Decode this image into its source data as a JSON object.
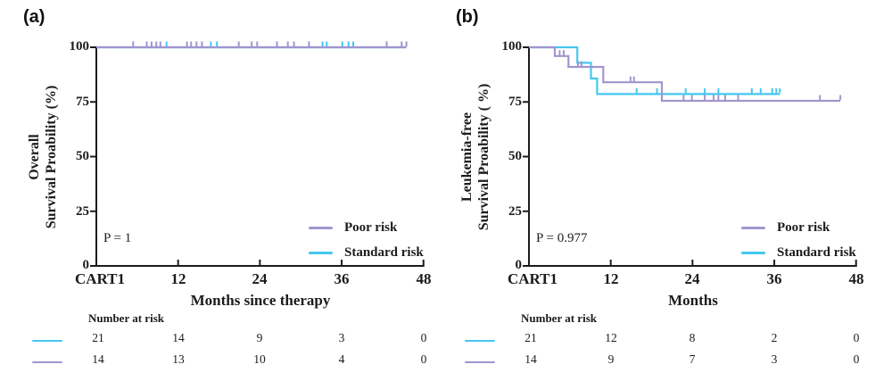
{
  "figure": {
    "background": "#ffffff",
    "colors": {
      "poor": "#A295CE",
      "standard": "#45C7F0",
      "axis": "#1C1C1C",
      "text": "#1C1C1C"
    }
  },
  "chart_data": [
    {
      "type": "km_step",
      "panel_label": "(a)",
      "ylabel_lines": [
        "Overall",
        "Survival Proability (%)"
      ],
      "xlabel": "Months since therapy",
      "p_value": "P = 1",
      "x_axis": {
        "tick_labels": [
          "CART1",
          "12",
          "24",
          "36",
          "48"
        ],
        "tick_months": [
          0,
          12,
          24,
          36,
          48
        ],
        "range_months": [
          0,
          48
        ]
      },
      "y_axis": {
        "tick_labels": [
          "100",
          "75",
          "50",
          "25",
          "0"
        ],
        "tick_values": [
          100,
          75,
          50,
          25,
          0
        ],
        "range": [
          0,
          100
        ]
      },
      "legend": [
        {
          "label": "Poor risk",
          "color_key": "poor"
        },
        {
          "label": "Standard risk",
          "color_key": "standard"
        }
      ],
      "series": [
        {
          "name": "Standard risk",
          "color_key": "standard",
          "points": [
            [
              0,
              100
            ],
            [
              45.5,
              100
            ]
          ],
          "censor_marks": [
            [
              10.3,
              100
            ],
            [
              16.8,
              100
            ],
            [
              17.7,
              100
            ],
            [
              33.2,
              100
            ],
            [
              33.8,
              100
            ],
            [
              36.1,
              100
            ],
            [
              37.0,
              100
            ],
            [
              37.7,
              100
            ]
          ]
        },
        {
          "name": "Poor risk",
          "color_key": "poor",
          "points": [
            [
              0,
              100
            ],
            [
              45.5,
              100
            ]
          ],
          "censor_marks": [
            [
              5.4,
              100
            ],
            [
              7.4,
              100
            ],
            [
              8.1,
              100
            ],
            [
              8.8,
              100
            ],
            [
              9.4,
              100
            ],
            [
              13.3,
              100
            ],
            [
              13.9,
              100
            ],
            [
              14.7,
              100
            ],
            [
              15.5,
              100
            ],
            [
              20.9,
              100
            ],
            [
              22.8,
              100
            ],
            [
              23.6,
              100
            ],
            [
              26.5,
              100
            ],
            [
              28.1,
              100
            ],
            [
              29.0,
              100
            ],
            [
              31.2,
              100
            ],
            [
              42.6,
              100
            ],
            [
              44.8,
              100
            ],
            [
              45.5,
              100
            ]
          ]
        }
      ],
      "number_at_risk": {
        "title": "Number at risk",
        "rows": [
          {
            "color_key": "standard",
            "values": [
              "21",
              "14",
              "9",
              "3",
              "0"
            ]
          },
          {
            "color_key": "poor",
            "values": [
              "14",
              "13",
              "10",
              "4",
              "0"
            ]
          }
        ]
      }
    },
    {
      "type": "km_step",
      "panel_label": "(b)",
      "ylabel_lines": [
        "Leukemia-free",
        "Survival Proability ( %)"
      ],
      "xlabel": "Months",
      "p_value": "P = 0.977",
      "x_axis": {
        "tick_labels": [
          "CART1",
          "12",
          "24",
          "36",
          "48"
        ],
        "tick_months": [
          0,
          12,
          24,
          36,
          48
        ],
        "range_months": [
          0,
          48
        ]
      },
      "y_axis": {
        "tick_labels": [
          "100",
          "75",
          "50",
          "25",
          "0"
        ],
        "tick_values": [
          100,
          75,
          50,
          25,
          0
        ],
        "range": [
          0,
          100
        ]
      },
      "legend": [
        {
          "label": "Poor risk",
          "color_key": "poor"
        },
        {
          "label": "Standard risk",
          "color_key": "standard"
        }
      ],
      "series": [
        {
          "name": "Standard risk",
          "color_key": "standard",
          "points": [
            [
              0,
              100
            ],
            [
              7.1,
              100
            ],
            [
              7.1,
              92.9
            ],
            [
              9.1,
              92.9
            ],
            [
              9.1,
              85.7
            ],
            [
              10,
              85.7
            ],
            [
              10,
              78.6
            ],
            [
              36.8,
              78.6
            ]
          ],
          "censor_marks": [
            [
              15.8,
              78.6
            ],
            [
              18.8,
              78.6
            ],
            [
              23,
              78.6
            ],
            [
              25.8,
              78.6
            ],
            [
              27.8,
              78.6
            ],
            [
              32.7,
              78.6
            ],
            [
              34,
              78.6
            ],
            [
              35.7,
              78.6
            ],
            [
              36.3,
              78.6
            ],
            [
              36.8,
              78.6
            ]
          ]
        },
        {
          "name": "Poor risk",
          "color_key": "poor",
          "points": [
            [
              0,
              100
            ],
            [
              3.8,
              100
            ],
            [
              3.8,
              96
            ],
            [
              5.8,
              96
            ],
            [
              5.8,
              91
            ],
            [
              10.9,
              91
            ],
            [
              10.9,
              84
            ],
            [
              19.5,
              84
            ],
            [
              19.5,
              75.5
            ],
            [
              45.7,
              75.5
            ]
          ],
          "censor_marks": [
            [
              4.5,
              96
            ],
            [
              5.1,
              96
            ],
            [
              7.2,
              91
            ],
            [
              7.7,
              91
            ],
            [
              14.9,
              84
            ],
            [
              15.4,
              84
            ],
            [
              22.7,
              75.5
            ],
            [
              23.9,
              75.5
            ],
            [
              25.8,
              75.5
            ],
            [
              27.1,
              75.5
            ],
            [
              27.8,
              75.5
            ],
            [
              28.8,
              75.5
            ],
            [
              30.7,
              75.5
            ],
            [
              42.7,
              75.5
            ],
            [
              45.7,
              75.5
            ]
          ]
        }
      ],
      "number_at_risk": {
        "title": "Number at risk",
        "rows": [
          {
            "color_key": "standard",
            "values": [
              "21",
              "12",
              "8",
              "2",
              "0"
            ]
          },
          {
            "color_key": "poor",
            "values": [
              "14",
              "9",
              "7",
              "3",
              "0"
            ]
          }
        ]
      }
    }
  ]
}
